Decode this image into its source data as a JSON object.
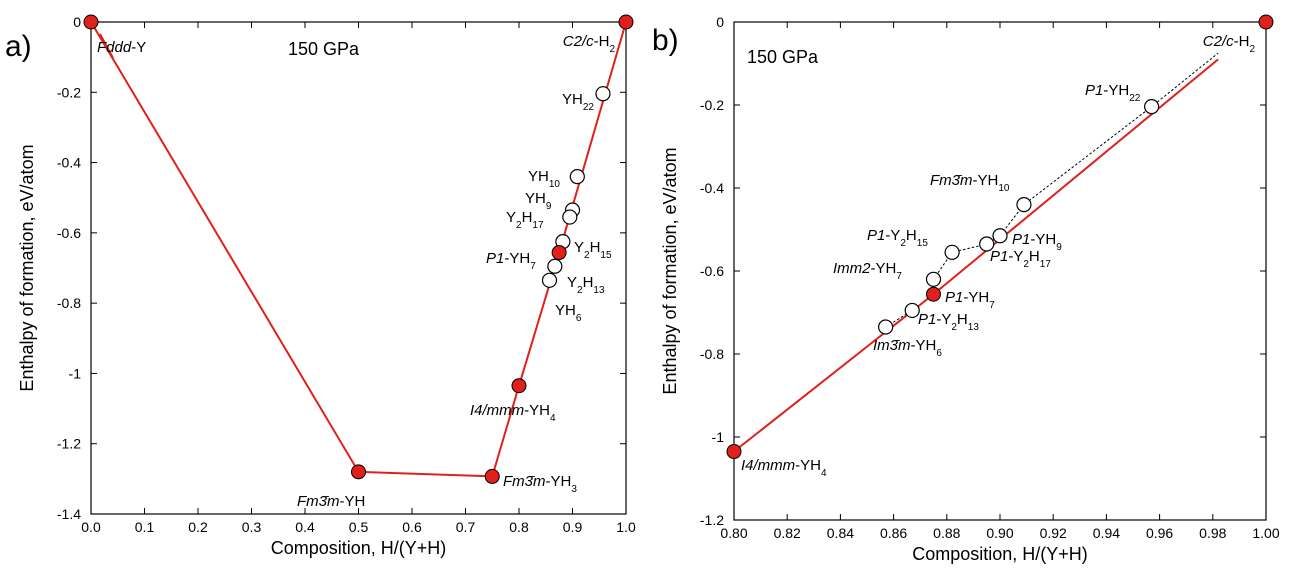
{
  "chart_data": [
    {
      "type": "scatter",
      "panel_label": "a)",
      "pressure_label": "150 GPa",
      "xlabel": "Composition, H/(Y+H)",
      "ylabel": "Enthalpy of formation, eV/atom",
      "xlim": [
        0.0,
        1.0
      ],
      "ylim": [
        -1.4,
        0.0
      ],
      "x_ticks": [
        "0.0",
        "0.1",
        "0.2",
        "0.3",
        "0.4",
        "0.5",
        "0.6",
        "0.7",
        "0.8",
        "0.9",
        "1.0"
      ],
      "y_ticks": [
        "0",
        "-0.2",
        "-0.4",
        "-0.6",
        "-0.8",
        "-1",
        "-1.2",
        "-1.4"
      ],
      "hull": [
        [
          0.0,
          0.0
        ],
        [
          0.5,
          -1.28
        ],
        [
          0.75,
          -1.293
        ],
        [
          0.8,
          -1.035
        ],
        [
          0.875,
          -0.656
        ],
        [
          1.0,
          0.0
        ]
      ],
      "stable_points": [
        [
          0.0,
          0.0
        ],
        [
          0.5,
          -1.28
        ],
        [
          0.75,
          -1.293
        ],
        [
          0.8,
          -1.035
        ],
        [
          0.875,
          -0.656
        ],
        [
          1.0,
          0.0
        ]
      ],
      "metastable_points": [
        [
          0.957,
          -0.204
        ],
        [
          0.909,
          -0.44
        ],
        [
          0.9,
          -0.535
        ],
        [
          0.895,
          -0.555
        ],
        [
          0.882,
          -0.625
        ],
        [
          0.867,
          -0.695
        ],
        [
          0.857,
          -0.735
        ]
      ],
      "labels": [
        {
          "base": "Fddd",
          "italic": true,
          "rest": "-Y"
        },
        {
          "base": "C2/c",
          "italic": true,
          "rest": "-H",
          "sub": "2"
        },
        {
          "base": "YH",
          "sub": "22"
        },
        {
          "base": "YH",
          "sub": "10"
        },
        {
          "base": "YH",
          "sub": "9"
        },
        {
          "base": "Y",
          "sub": "2",
          "rest": "H",
          "sub2": "17"
        },
        {
          "base": "Y",
          "sub": "2",
          "rest": "H",
          "sub2": "15"
        },
        {
          "base": "P1",
          "italic": true,
          "rest": "-YH",
          "sub": "7"
        },
        {
          "base": "Y",
          "sub": "2",
          "rest": "H",
          "sub2": "13"
        },
        {
          "base": "YH",
          "sub": "6"
        },
        {
          "base": "I4/mmm",
          "italic": true,
          "rest": "-YH",
          "sub": "4"
        },
        {
          "base": "Fm3̄m",
          "italic": true,
          "rest": "-YH"
        },
        {
          "base": "Fm3̄m",
          "italic": true,
          "rest": "-YH",
          "sub": "3"
        }
      ]
    },
    {
      "type": "scatter",
      "panel_label": "b)",
      "pressure_label": "150 GPa",
      "xlabel": "Composition, H/(Y+H)",
      "ylabel": "Enthalpy of formation, eV/atom",
      "xlim": [
        0.8,
        1.0
      ],
      "ylim": [
        -1.2,
        0.0
      ],
      "x_ticks": [
        "0.80",
        "0.82",
        "0.84",
        "0.86",
        "0.88",
        "0.90",
        "0.92",
        "0.94",
        "0.96",
        "0.98",
        "1.00"
      ],
      "y_ticks": [
        "0",
        "-0.2",
        "-0.4",
        "-0.6",
        "-0.8",
        "-1",
        "-1.2"
      ],
      "hull": [
        [
          0.8,
          -1.035
        ],
        [
          0.875,
          -0.656
        ],
        [
          0.982,
          -0.09
        ]
      ],
      "metastable_path": [
        [
          0.857,
          -0.735
        ],
        [
          0.867,
          -0.695
        ],
        [
          0.875,
          -0.656
        ],
        [
          0.875,
          -0.62
        ],
        [
          0.882,
          -0.555
        ],
        [
          0.895,
          -0.535
        ],
        [
          0.9,
          -0.515
        ],
        [
          0.909,
          -0.44
        ],
        [
          0.957,
          -0.204
        ],
        [
          0.982,
          -0.075
        ]
      ],
      "stable_points": [
        [
          0.8,
          -1.035
        ],
        [
          0.875,
          -0.656
        ],
        [
          1.0,
          0.0
        ]
      ],
      "metastable_points": [
        [
          0.957,
          -0.204
        ],
        [
          0.909,
          -0.44
        ],
        [
          0.9,
          -0.515
        ],
        [
          0.895,
          -0.535
        ],
        [
          0.882,
          -0.555
        ],
        [
          0.875,
          -0.62
        ],
        [
          0.867,
          -0.695
        ],
        [
          0.857,
          -0.735
        ]
      ],
      "labels": [
        {
          "base": "C2/c",
          "italic": true,
          "rest": "-H",
          "sub": "2"
        },
        {
          "base": "P1",
          "italic": true,
          "rest": "-YH",
          "sub": "22"
        },
        {
          "base": "Fm3̄m",
          "italic": true,
          "rest": "-YH",
          "sub": "10"
        },
        {
          "base": "P1",
          "italic": true,
          "rest": "-Y",
          "sub": "2",
          "rest2": "H",
          "sub2": "15"
        },
        {
          "base": "P1",
          "italic": true,
          "rest": "-YH",
          "sub": "9"
        },
        {
          "base": "P1",
          "italic": true,
          "rest": "-Y",
          "sub": "2",
          "rest2": "H",
          "sub2": "17"
        },
        {
          "base": "Imm2",
          "italic": true,
          "rest": "-YH",
          "sub": "7"
        },
        {
          "base": "P1",
          "italic": true,
          "rest": "-YH",
          "sub": "7"
        },
        {
          "base": "P1",
          "italic": true,
          "rest": "-Y",
          "sub": "2",
          "rest2": "H",
          "sub2": "13"
        },
        {
          "base": "Im3̄m",
          "italic": true,
          "rest": "-YH",
          "sub": "6"
        },
        {
          "base": "I4/mmm",
          "italic": true,
          "rest": "-YH",
          "sub": "4"
        }
      ]
    }
  ]
}
